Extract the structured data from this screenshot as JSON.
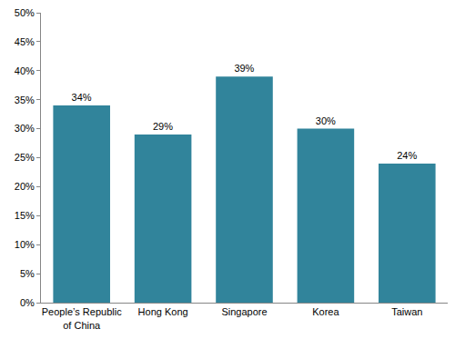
{
  "chart_data": {
    "type": "bar",
    "categories": [
      "People’s Republic of China",
      "Hong Kong",
      "Singapore",
      "Korea",
      "Taiwan"
    ],
    "values": [
      34,
      29,
      39,
      30,
      24
    ],
    "value_labels": [
      "34%",
      "29%",
      "39%",
      "30%",
      "24%"
    ],
    "data_labels": true,
    "color": "#31849b",
    "ylim": [
      0,
      50
    ],
    "yticks": [
      {
        "value": 0,
        "label": "0%"
      },
      {
        "value": 5,
        "label": "5%"
      },
      {
        "value": 10,
        "label": "10%"
      },
      {
        "value": 15,
        "label": "15%"
      },
      {
        "value": 20,
        "label": "20%"
      },
      {
        "value": 25,
        "label": "25%"
      },
      {
        "value": 30,
        "label": "30%"
      },
      {
        "value": 35,
        "label": "35%"
      },
      {
        "value": 40,
        "label": "40%"
      },
      {
        "value": 45,
        "label": "45%"
      },
      {
        "value": 50,
        "label": "50%"
      }
    ],
    "grid": false
  }
}
